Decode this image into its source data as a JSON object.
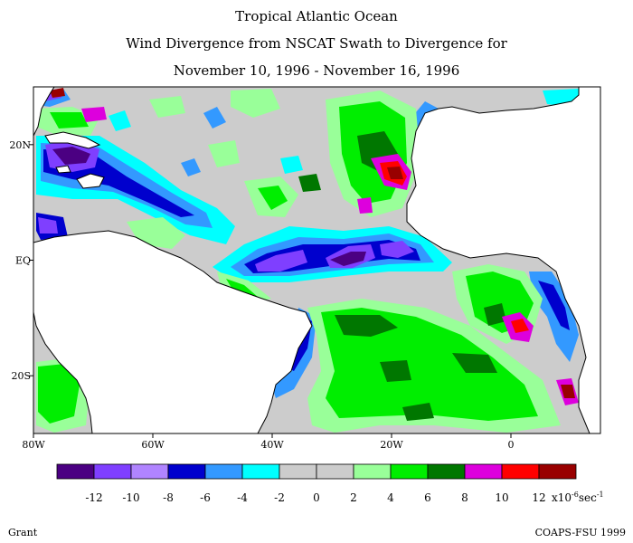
{
  "header": {
    "title_line1": "Tropical Atlantic Ocean",
    "title_line2": "Wind Divergence from NSCAT Swath to Divergence for",
    "title_line3": "November 10, 1996 - November 16, 1996"
  },
  "map": {
    "region": "Tropical Atlantic Ocean",
    "lon_range": [
      -80,
      15
    ],
    "lat_range": [
      -30,
      30
    ],
    "x_ticks": [
      "80W",
      "60W",
      "40W",
      "20W",
      "0"
    ],
    "y_ticks": [
      "20N",
      "EQ",
      "20S"
    ],
    "land_color": "#ffffff",
    "neutral_ocean_color": "#cccccc"
  },
  "colorbar": {
    "colors": [
      "#4b0082",
      "#7f3fff",
      "#b084ff",
      "#0000cd",
      "#3399ff",
      "#00ffff",
      "#cccccc",
      "#cccccc",
      "#99ff99",
      "#00ee00",
      "#007700",
      "#dd00dd",
      "#ff0000",
      "#990000"
    ],
    "labels": [
      "-12",
      "-10",
      "-8",
      "-6",
      "-4",
      "-2",
      "0",
      "2",
      "4",
      "6",
      "8",
      "10",
      "12"
    ],
    "units": "x10",
    "units_exp": "-6",
    "units_suffix": "sec",
    "units_suffix_exp": "-1"
  },
  "footer": {
    "left": "Grant",
    "right": "COAPS-FSU 1999"
  }
}
